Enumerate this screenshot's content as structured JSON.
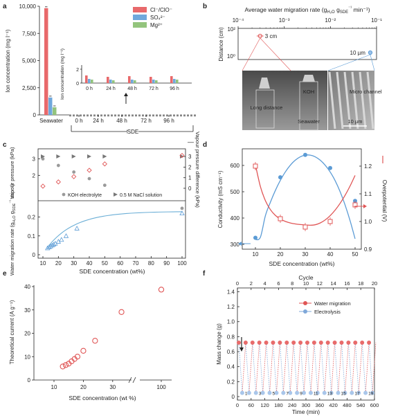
{
  "panel_labels": [
    "a",
    "b",
    "c",
    "d",
    "e",
    "f"
  ],
  "chart_data": [
    {
      "panel": "a",
      "type": "bar",
      "ylabel": "Ion concentration (mg l⁻¹)",
      "yticks": [
        "0",
        "2,500",
        "5,000",
        "7,500",
        "10,000"
      ],
      "ylim": [
        0,
        10000
      ],
      "categories": [
        "Seawater",
        "0 h",
        "24 h",
        "48 h",
        "72 h",
        "96 h"
      ],
      "group_label": "SDE",
      "legend": [
        "Cl⁻/ClO⁻",
        "SO₄²⁻",
        "Mg²⁺"
      ],
      "colors": [
        "#e8696b",
        "#6fa8dc",
        "#93c47d"
      ],
      "series": [
        {
          "name": "Cl⁻/ClO⁻",
          "values": [
            9820,
            0,
            0,
            0,
            0,
            0
          ]
        },
        {
          "name": "SO₄²⁻",
          "values": [
            1600,
            0,
            0,
            0,
            0,
            0
          ]
        },
        {
          "name": "Mg²⁺",
          "values": [
            700,
            0,
            0,
            0,
            0,
            0
          ]
        }
      ],
      "inset": {
        "ylabel": "Ion concentration (mg l⁻¹)",
        "yticks": [
          "0",
          "2"
        ],
        "ylim": [
          0,
          2
        ],
        "categories": [
          "0 h",
          "24 h",
          "48 h",
          "72 h",
          "96 h"
        ],
        "series": [
          {
            "name": "Cl⁻/ClO⁻",
            "values": [
              1.1,
              0.9,
              1.0,
              0.9,
              1.0
            ]
          },
          {
            "name": "SO₄²⁻",
            "values": [
              0.6,
              0.5,
              0.5,
              0.5,
              0.6
            ]
          },
          {
            "name": "Mg²⁺",
            "values": [
              0.5,
              0.4,
              0.4,
              0.4,
              0.5
            ]
          }
        ]
      }
    },
    {
      "panel": "b",
      "type": "scatter",
      "xlabel": "Average water migration rate (g",
      "xlabel_sub": "H₂O",
      "xlabel_tail": " g",
      "xlabel_sub2": "SDE",
      "xlabel_sup": "⁻¹",
      "xlabel_end": " min⁻¹)",
      "xticks": [
        "10⁻⁴",
        "10⁻³",
        "10⁻²",
        "10⁻¹"
      ],
      "ylabel": "Distance (cm)",
      "yticks": [
        "10²",
        "10⁰"
      ],
      "points": [
        {
          "label": "3 cm",
          "x": 0.0003,
          "y": 3
        },
        {
          "label": "10 µm",
          "x": 0.09,
          "y": 0.001
        }
      ],
      "photos": [
        "Long distance",
        "KOH",
        "Seawater",
        "Micro channel",
        "10 µm"
      ]
    },
    {
      "panel": "c",
      "type": "scatter",
      "top": {
        "ylabel_left": "Vapour pressure (kPa)",
        "ylabel_right": "Vapour pressure difference (kPa)",
        "yticks_left": [
          "2",
          "3"
        ],
        "yticks_right": [
          "0",
          "1",
          "2",
          "3"
        ],
        "legend": [
          "KOH electrolyte",
          "0.5 M NaCl solution"
        ],
        "right_legend": "—",
        "koh": {
          "x": [
            10,
            20,
            30,
            40,
            50,
            100
          ],
          "y": [
            3.0,
            2.6,
            2.2,
            1.8,
            1.4,
            0
          ]
        },
        "nacl": {
          "x": [
            10,
            20,
            30,
            40,
            50,
            100
          ],
          "y": [
            3.15,
            3.15,
            3.15,
            3.15,
            3.15,
            3.15
          ]
        },
        "difference": {
          "x": [
            10,
            20,
            30,
            40,
            50,
            100
          ],
          "y": [
            0.2,
            0.6,
            1.1,
            1.7,
            2.3,
            3.1
          ]
        }
      },
      "bottom": {
        "ylabel": "Water migration rate (g",
        "ylabel_sub": "H₂O",
        "ylabel_mid": " g",
        "ylabel_sub2": "SDE",
        "ylabel_sup": "⁻¹",
        "ylabel_end": " min⁻¹)",
        "yticks": [
          "0",
          "0.1",
          "0.2"
        ],
        "ylim": [
          0,
          0.25
        ],
        "xlabel": "SDE concentration (wt%)",
        "xticks": [
          "10",
          "20",
          "30",
          "40",
          "50",
          "60",
          "70",
          "80",
          "90",
          "100"
        ],
        "x": [
          13,
          14,
          15,
          16,
          17,
          18,
          20,
          22,
          25,
          32,
          100
        ],
        "y": [
          0.035,
          0.04,
          0.045,
          0.05,
          0.055,
          0.06,
          0.07,
          0.08,
          0.1,
          0.14,
          0.22
        ]
      }
    },
    {
      "panel": "d",
      "type": "line",
      "xlabel": "SDE concentration (wt%)",
      "xticks": [
        "10",
        "20",
        "30",
        "40",
        "50"
      ],
      "ylabel_left": "Conductivity (mS cm⁻¹)",
      "yticks_left": [
        "300",
        "400",
        "500",
        "600"
      ],
      "ylim_left": [
        300,
        650
      ],
      "ylabel_right": "Overpotential (V)",
      "yticks_right": [
        "0.9",
        "1.0",
        "1.1",
        "1.2"
      ],
      "ylim_right": [
        0.9,
        1.25
      ],
      "series": [
        {
          "x": [
            10,
            20,
            30,
            40,
            50
          ],
          "y": [
            325,
            555,
            640,
            590,
            465
          ],
          "color": "#5b9bd5"
        },
        {
          "x": [
            10,
            20,
            30,
            40,
            50
          ],
          "y": [
            1.2,
            1.01,
            0.98,
            1.0,
            1.06
          ],
          "color": "#e05555"
        }
      ]
    },
    {
      "panel": "e",
      "type": "scatter",
      "xlabel": "SDE concentration (wt %)",
      "xticks": [
        "10",
        "20",
        "30",
        "100"
      ],
      "ylabel": "Theoretical current (A g⁻¹)",
      "yticks": [
        "0",
        "10",
        "20",
        "30",
        "40"
      ],
      "ylim": [
        0,
        40
      ],
      "x": [
        13,
        14,
        15,
        16,
        17,
        18,
        20,
        24,
        33,
        100
      ],
      "y": [
        5.8,
        6.4,
        7.0,
        8.0,
        9.0,
        10.0,
        12.5,
        16.8,
        29.1,
        38.7
      ]
    },
    {
      "panel": "f",
      "type": "line",
      "xlabel": "Time (min)",
      "xticks": [
        "0",
        "60",
        "120",
        "180",
        "240",
        "300",
        "360",
        "420",
        "480",
        "540",
        "600"
      ],
      "x2label": "Cycle",
      "x2ticks": [
        "0",
        "2",
        "4",
        "6",
        "8",
        "10",
        "12",
        "14",
        "16",
        "18",
        "20"
      ],
      "ylabel": "Mass change (g)",
      "yticks": [
        "0",
        "0.2",
        "0.4",
        "0.6",
        "0.8",
        "1.0",
        "1.2",
        "1.4"
      ],
      "ylim": [
        0,
        1.45
      ],
      "legend": [
        "Water migration",
        "Electrolysis"
      ],
      "colors": [
        "#e05555",
        "#7fa8d9"
      ],
      "high": 0.72,
      "low": 0.05,
      "cycle_labels": [
        "1",
        "3",
        "5",
        "7",
        "9",
        "11",
        "13",
        "15",
        "17",
        "19"
      ]
    }
  ]
}
